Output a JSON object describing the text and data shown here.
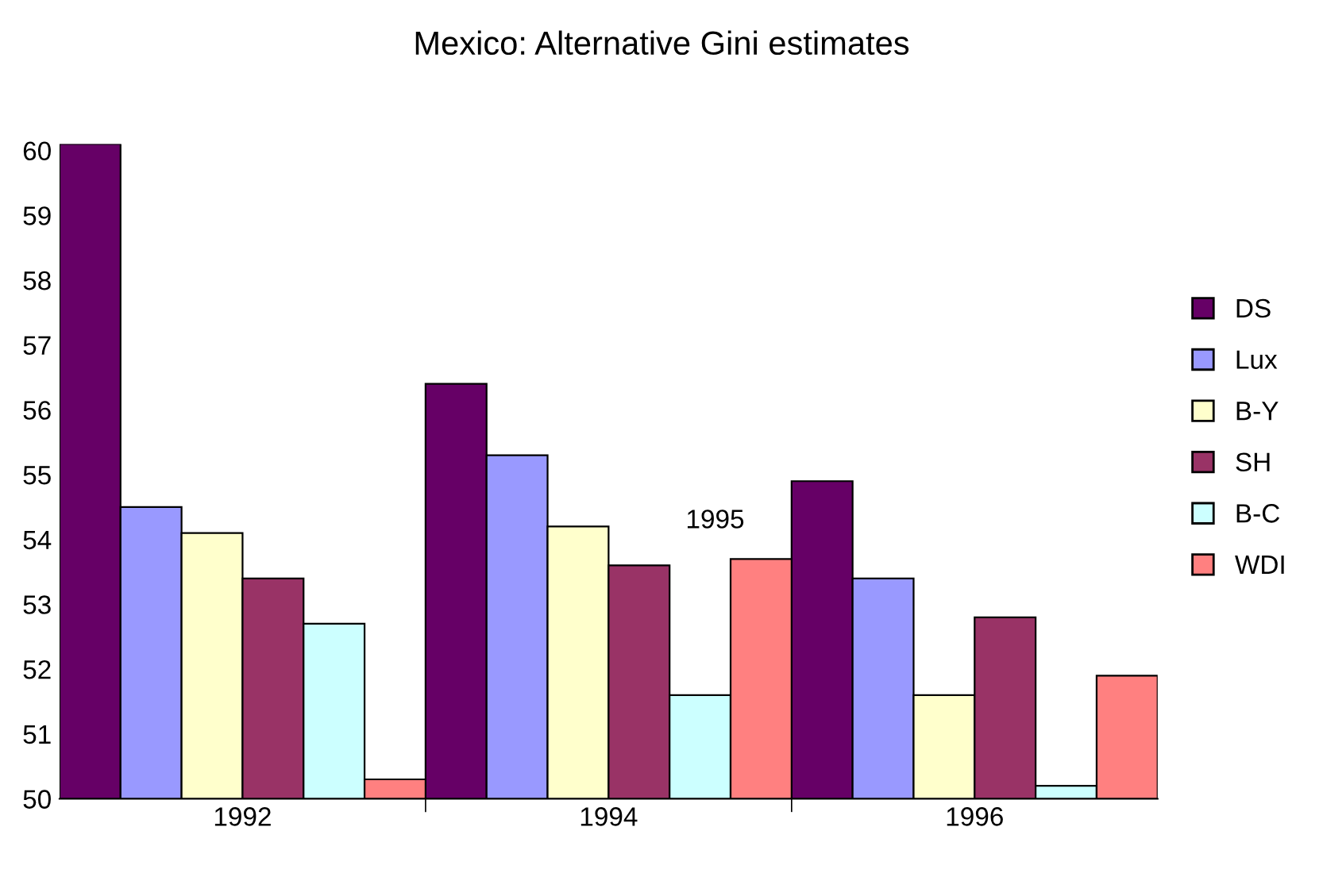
{
  "chart_data": {
    "type": "bar",
    "title": "Mexico: Alternative Gini estimates",
    "categories": [
      "1992",
      "1994",
      "1996"
    ],
    "series": [
      {
        "name": "DS",
        "color": "#660066",
        "values": [
          60.1,
          56.4,
          54.9
        ]
      },
      {
        "name": "Lux",
        "color": "#9999ff",
        "values": [
          54.5,
          55.3,
          53.4
        ]
      },
      {
        "name": "B-Y",
        "color": "#ffffcc",
        "values": [
          54.1,
          54.2,
          51.6
        ]
      },
      {
        "name": "SH",
        "color": "#993366",
        "values": [
          53.4,
          53.6,
          52.8
        ]
      },
      {
        "name": "B-C",
        "color": "#ccffff",
        "values": [
          52.7,
          51.6,
          50.2
        ]
      },
      {
        "name": "WDI",
        "color": "#ff8080",
        "values": [
          50.3,
          53.7,
          51.9
        ]
      }
    ],
    "ylim": [
      50,
      60.1
    ],
    "yticks": [
      50,
      51,
      52,
      53,
      54,
      55,
      56,
      57,
      58,
      59,
      60
    ],
    "annotations": [
      "1995"
    ],
    "grid": false,
    "legend": "right"
  }
}
